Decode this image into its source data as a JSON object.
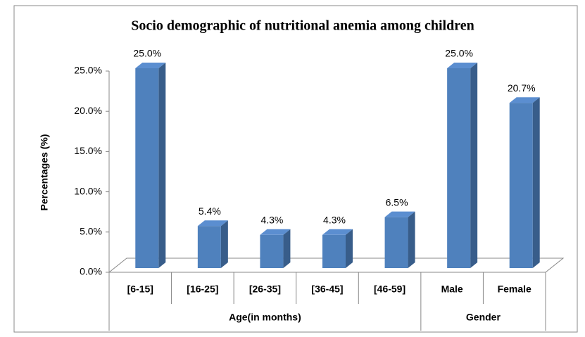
{
  "chart_data": {
    "type": "bar3d",
    "title": "Socio demographic of nutritional anemia among children",
    "y_label": "Percentages (%)",
    "color": "#4f81bd",
    "ylim": [
      0,
      25
    ],
    "yticks": [
      {
        "value": 0,
        "label": "0.0%"
      },
      {
        "value": 5,
        "label": "5.0%"
      },
      {
        "value": 10,
        "label": "10.0%"
      },
      {
        "value": 15,
        "label": "15.0%"
      },
      {
        "value": 20,
        "label": "20.0%"
      },
      {
        "value": 25,
        "label": "25.0%"
      }
    ],
    "groups": [
      {
        "label": "Age(in months)",
        "categories": [
          "[6-15]",
          "[16-25]",
          "[26-35]",
          "[36-45]",
          "[46-59]"
        ],
        "values": [
          25.0,
          5.4,
          4.3,
          4.3,
          6.5
        ],
        "value_labels": [
          "25.0%",
          "5.4%",
          "4.3%",
          "4.3%",
          "6.5%"
        ]
      },
      {
        "label": "Gender",
        "categories": [
          "Male",
          "Female"
        ],
        "values": [
          25.0,
          20.7
        ],
        "value_labels": [
          "25.0%",
          "20.7%"
        ]
      }
    ]
  }
}
